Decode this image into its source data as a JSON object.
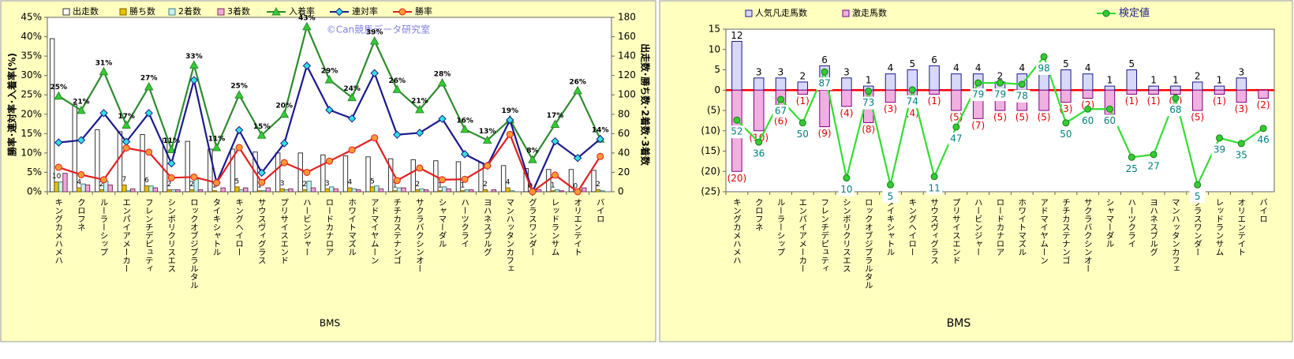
{
  "chart_data": [
    {
      "type": "combo",
      "categories": [
        "キングカメハメハ",
        "クロフネ",
        "ルーラーシップ",
        "エンパイアメーカー",
        "フレンチデピュティ",
        "シンボリクリスエス",
        "ロックオブジブラルタル",
        "タイキシャトル",
        "キングヘイロー",
        "サウスヴィグラス",
        "プリサイスエンド",
        "ハービンジャー",
        "ロードカナロア",
        "ホワイトマズル",
        "アドマイヤムーン",
        "チチカステナンゴ",
        "サクラバクシンオー",
        "シャマーダル",
        "ハーツクライ",
        "ヨハネスブルグ",
        "マンハッタンカフェ",
        "グラスワンダー",
        "レッドランサム",
        "オリエンテイト",
        "バイロ"
      ],
      "series": [
        {
          "name": "出走数",
          "type": "bar",
          "axis": "y2",
          "color": "#ffffff",
          "border": "#333333",
          "values": [
            158,
            90,
            64,
            62,
            59,
            55,
            52,
            44,
            44,
            41,
            40,
            40,
            38,
            37,
            36,
            34,
            33,
            32,
            31,
            30,
            27,
            24,
            23,
            23,
            22
          ]
        },
        {
          "name": "勝ち数",
          "type": "bar",
          "axis": "y2",
          "color": "#e8c000",
          "border": "#806000",
          "show_labels": true,
          "label_color": "#000000",
          "values": [
            10,
            4,
            2,
            7,
            6,
            2,
            2,
            1,
            5,
            1,
            3,
            2,
            3,
            4,
            5,
            1,
            2,
            1,
            1,
            2,
            4,
            0,
            1,
            0,
            2
          ]
        },
        {
          "name": "2着数",
          "type": "bar",
          "axis": "y2",
          "color": "#c8f0f0",
          "border": "#408080",
          "values": [
            10,
            8,
            11,
            1,
            6,
            2,
            13,
            0,
            2,
            1,
            2,
            11,
            5,
            3,
            6,
            4,
            3,
            5,
            2,
            0,
            1,
            0,
            2,
            2,
            1
          ]
        },
        {
          "name": "3着数",
          "type": "bar",
          "axis": "y2",
          "color": "#f0a8d8",
          "border": "#803060",
          "values": [
            19,
            7,
            7,
            3,
            4,
            2,
            2,
            4,
            4,
            4,
            3,
            4,
            3,
            2,
            3,
            4,
            2,
            3,
            2,
            2,
            0,
            2,
            1,
            4,
            0
          ]
        },
        {
          "name": "入着率",
          "type": "line",
          "color": "#2e8b2e",
          "marker": "triangle",
          "marker_color": "#33cc33",
          "values": [
            24.7,
            21,
            31,
            17.2,
            27.1,
            10.9,
            32.7,
            11.4,
            25,
            14.6,
            20,
            42.6,
            28.9,
            24.3,
            38.9,
            26.4,
            21.2,
            28.1,
            16.1,
            13.3,
            18.6,
            8.3,
            17.4,
            26.1,
            13.6
          ],
          "value_labels": [
            "25%",
            "21%",
            "31%",
            "17%",
            "27%",
            "11%",
            "33%",
            "11%",
            "25%",
            "15%",
            "20%",
            "43%",
            "29%",
            "24%",
            "39%",
            "26%",
            "21%",
            "28%",
            "16%",
            "13%",
            "19%",
            "8%",
            "17%",
            "26%",
            "14%"
          ]
        },
        {
          "name": "連対率",
          "type": "line",
          "color": "#1a1a8c",
          "marker": "diamond",
          "marker_color": "#33e0e0",
          "values": [
            12.7,
            13.3,
            20.3,
            12.9,
            20.3,
            7.3,
            28.8,
            2.3,
            15.9,
            4.9,
            12.5,
            32.5,
            21.1,
            18.9,
            30.6,
            14.7,
            15.2,
            18.8,
            9.7,
            6.7,
            18.5,
            0,
            13,
            8.7,
            13.6
          ]
        },
        {
          "name": "勝率",
          "type": "line",
          "color": "#e02020",
          "marker": "circle",
          "marker_color": "#ff9933",
          "values": [
            6.3,
            4.4,
            3.1,
            11.3,
            10.2,
            3.6,
            3.8,
            2.3,
            11.4,
            2.4,
            7.5,
            5,
            7.9,
            10.8,
            13.9,
            2.9,
            6.1,
            3.1,
            3.2,
            6.7,
            14.8,
            0,
            4.3,
            0,
            9.1
          ]
        }
      ],
      "ylim": [
        0,
        45
      ],
      "yticks": [
        {
          "value": 0,
          "label": "0%"
        },
        {
          "value": 5,
          "label": "5%"
        },
        {
          "value": 10,
          "label": "10%"
        },
        {
          "value": 15,
          "label": "15%"
        },
        {
          "value": 20,
          "label": "20%"
        },
        {
          "value": 25,
          "label": "25%"
        },
        {
          "value": 30,
          "label": "30%"
        },
        {
          "value": 35,
          "label": "35%"
        },
        {
          "value": 40,
          "label": "40%"
        },
        {
          "value": 45,
          "label": "45%"
        }
      ],
      "y2lim": [
        0,
        180
      ],
      "y2ticks": [
        0,
        20,
        40,
        60,
        80,
        100,
        120,
        140,
        160,
        180
      ],
      "ylabel": "勝率･連対率･入着率(%)",
      "y2label": "出走数･勝ち数･2着数･3着数",
      "xlabel": "BMS",
      "watermark": "©Can競馬データ研究室"
    },
    {
      "type": "combo",
      "categories": [
        "キングカメハメハ",
        "クロフネ",
        "ルーラーシップ",
        "エンパイアメーカー",
        "フレンチデピュティ",
        "シンボリクリスエス",
        "ロックオブジブラルタル",
        "タイキシャトル",
        "キングヘイロー",
        "サウスヴィグラス",
        "プリサイスエンド",
        "ハービンジャー",
        "ロードカナロア",
        "ホワイトマズル",
        "アドマイヤムーン",
        "チチカステナンゴ",
        "サクラバクシンオー",
        "シャマーダル",
        "ハーツクライ",
        "ヨハネスブルグ",
        "マンハッタンカフェ",
        "グラスワンダー",
        "レッドランサム",
        "オリエンテイト",
        "バイロ"
      ],
      "series": [
        {
          "name": "人気凡走馬数",
          "type": "bar",
          "color": "#d8d8f8",
          "border": "#1a1a8c",
          "show_labels": true,
          "label_color": "#000000",
          "values": [
            12,
            3,
            3,
            2,
            6,
            3,
            1,
            4,
            5,
            6,
            4,
            4,
            2,
            4,
            4,
            5,
            4,
            1,
            5,
            1,
            1,
            2,
            1,
            3,
            null
          ]
        },
        {
          "name": "激走馬数",
          "type": "bar",
          "color": "#f0b0e0",
          "border": "#800080",
          "show_labels": true,
          "label_color": "#e00000",
          "values": [
            -20,
            -10,
            -6,
            -1,
            -9,
            -4,
            -8,
            -3,
            -4,
            -1,
            -5,
            -7,
            -5,
            -5,
            -5,
            -3,
            -2,
            -6,
            -1,
            -1,
            -1,
            -5,
            -1,
            -3,
            -2
          ],
          "value_labels": [
            "(20)",
            "(10)",
            "(6)",
            "(1)",
            "(9)",
            "(4)",
            "(8)",
            "(3)",
            "(4)",
            "(1)",
            "(5)",
            "(7)",
            "(5)",
            "(5)",
            "(5)",
            "(3)",
            "(2)",
            "(6)",
            "(1)",
            "(1)",
            "(1)",
            "(5)",
            "(1)",
            "(3)",
            "(2)"
          ]
        },
        {
          "name": "検定値",
          "type": "line",
          "axis": "y2",
          "color": "#33dd33",
          "marker": "circle",
          "marker_color": "#33cc33",
          "label_style": "box",
          "label_color": "#008080",
          "values": [
            52,
            36,
            67,
            50,
            87,
            10,
            73,
            5,
            74,
            11,
            47,
            79,
            79,
            78,
            98,
            50,
            60,
            60,
            25,
            27,
            68,
            5,
            39,
            35,
            46
          ]
        }
      ],
      "ylim": [
        -25,
        15
      ],
      "yticks": [
        {
          "value": -25,
          "label": "(25)"
        },
        {
          "value": -20,
          "label": "(20)"
        },
        {
          "value": -15,
          "label": "(15)"
        },
        {
          "value": -10,
          "label": "(10)"
        },
        {
          "value": -5,
          "label": "(5)"
        },
        0,
        5,
        10,
        15
      ],
      "y2lim": [
        0,
        118
      ],
      "zero_line_color": "#ff0000",
      "bar_mode": "overlap",
      "xlabel": "BMS"
    }
  ]
}
